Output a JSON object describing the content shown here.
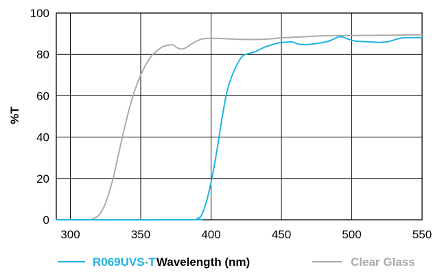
{
  "chart_data": {
    "type": "line",
    "xlabel": "Wavelength (nm)",
    "ylabel": "%T",
    "xlim": [
      290,
      550
    ],
    "ylim": [
      0,
      100
    ],
    "xticks": [
      300,
      350,
      400,
      450,
      500,
      550
    ],
    "yticks": [
      0,
      20,
      40,
      60,
      80,
      100
    ],
    "grid": true,
    "legend_position": "bottom",
    "series": [
      {
        "name": "R069UVS-T",
        "color": "#1fb3e0",
        "points": [
          [
            290,
            0
          ],
          [
            385,
            0
          ],
          [
            390,
            0.5
          ],
          [
            393,
            2
          ],
          [
            396,
            7
          ],
          [
            399,
            15
          ],
          [
            402,
            25
          ],
          [
            405,
            37
          ],
          [
            408,
            50
          ],
          [
            411,
            61
          ],
          [
            414,
            68
          ],
          [
            417,
            73
          ],
          [
            420,
            77
          ],
          [
            423,
            79.5
          ],
          [
            427,
            80.5
          ],
          [
            432,
            81.5
          ],
          [
            438,
            83.5
          ],
          [
            445,
            85
          ],
          [
            450,
            85.8
          ],
          [
            455,
            86
          ],
          [
            458,
            86
          ],
          [
            462,
            85
          ],
          [
            467,
            84.7
          ],
          [
            472,
            85
          ],
          [
            478,
            85.6
          ],
          [
            484,
            86.5
          ],
          [
            490,
            88.3
          ],
          [
            493,
            88.5
          ],
          [
            497,
            87.5
          ],
          [
            502,
            86.5
          ],
          [
            508,
            86.2
          ],
          [
            515,
            86
          ],
          [
            520,
            85.8
          ],
          [
            526,
            86.2
          ],
          [
            531,
            87.2
          ],
          [
            536,
            88
          ],
          [
            542,
            88.1
          ],
          [
            550,
            88.1
          ]
        ]
      },
      {
        "name": "Clear Glass",
        "color": "#aaaaaa",
        "points": [
          [
            290,
            0
          ],
          [
            312,
            0
          ],
          [
            316,
            0.5
          ],
          [
            320,
            2
          ],
          [
            323,
            5
          ],
          [
            326,
            10
          ],
          [
            330,
            19
          ],
          [
            334,
            31
          ],
          [
            338,
            43
          ],
          [
            342,
            54
          ],
          [
            346,
            63
          ],
          [
            350,
            70
          ],
          [
            354,
            75.5
          ],
          [
            358,
            79.5
          ],
          [
            362,
            82
          ],
          [
            366,
            83.8
          ],
          [
            370,
            84.5
          ],
          [
            373,
            84.6
          ],
          [
            376,
            83.2
          ],
          [
            379,
            82.6
          ],
          [
            382,
            83.2
          ],
          [
            386,
            85
          ],
          [
            390,
            86.5
          ],
          [
            394,
            87.5
          ],
          [
            400,
            87.8
          ],
          [
            410,
            87.6
          ],
          [
            420,
            87.3
          ],
          [
            430,
            87.2
          ],
          [
            440,
            87.4
          ],
          [
            450,
            88
          ],
          [
            465,
            88.5
          ],
          [
            480,
            89
          ],
          [
            490,
            89.1
          ],
          [
            510,
            89.2
          ],
          [
            530,
            89.3
          ],
          [
            550,
            89.5
          ]
        ]
      }
    ]
  }
}
